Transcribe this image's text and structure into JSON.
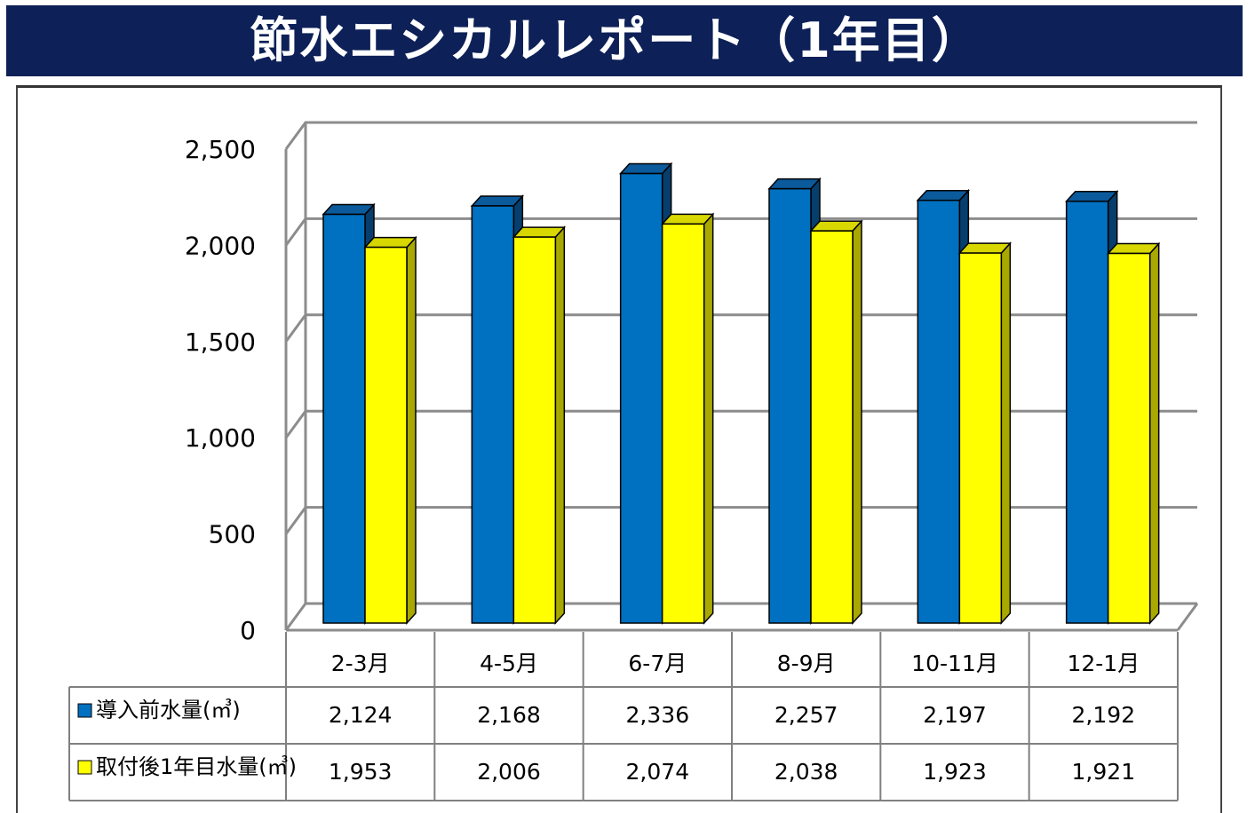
{
  "header": {
    "title": "節水エシカルレポート（1年目）"
  },
  "colors": {
    "banner_bg": "#0d2057",
    "series_blue": "#0070c0",
    "series_blue_top": "#0a5a9c",
    "series_blue_side": "#063f6e",
    "series_yellow": "#ffff00",
    "series_yellow_top": "#d8d800",
    "series_yellow_side": "#a8a800",
    "grid": "#8c8c8c"
  },
  "chart_data": {
    "type": "bar",
    "title": "",
    "xlabel": "",
    "ylabel": "",
    "ylim": [
      0,
      2500
    ],
    "yticks": [
      "0",
      "500",
      "1,000",
      "1,500",
      "2,000",
      "2,500"
    ],
    "ytick_values": [
      0,
      500,
      1000,
      1500,
      2000,
      2500
    ],
    "grid": true,
    "legend": "table-left",
    "categories": [
      "2-3月",
      "4-5月",
      "6-7月",
      "8-9月",
      "10-11月",
      "12-1月"
    ],
    "series": [
      {
        "name": "導入前水量(㎥)",
        "values": [
          2124,
          2168,
          2336,
          2257,
          2197,
          2192
        ],
        "labels": [
          "2,124",
          "2,168",
          "2,336",
          "2,257",
          "2,197",
          "2,192"
        ]
      },
      {
        "name": "取付後1年目水量(㎥)",
        "values": [
          1953,
          2006,
          2074,
          2038,
          1923,
          1921
        ],
        "labels": [
          "1,953",
          "2,006",
          "2,074",
          "2,038",
          "1,923",
          "1,921"
        ]
      }
    ]
  }
}
